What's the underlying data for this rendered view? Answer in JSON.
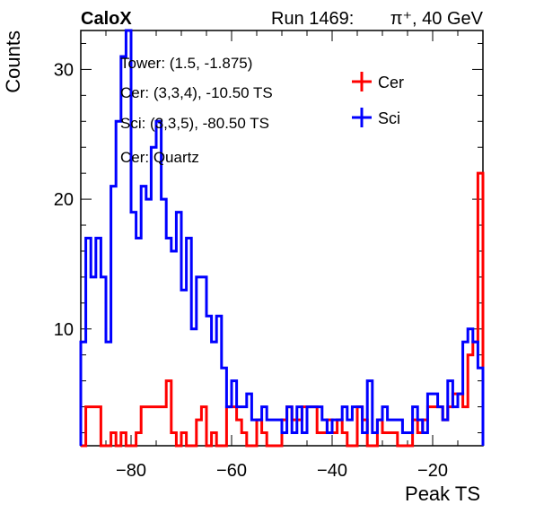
{
  "header": {
    "experiment": "CaloX",
    "run_prefix": "Run 1469:",
    "particle": "π⁺, 40 GeV"
  },
  "annotations": [
    "Tower: (1.5, -1.875)",
    "Cer: (3,3,4), -10.50 TS",
    "Sci: (3,3,5), -80.50 TS",
    "Cer: Quartz"
  ],
  "colors": {
    "Cer": "#ff0000",
    "Sci": "#0000ff"
  },
  "chart_data": {
    "type": "line",
    "style": "step-histogram",
    "xlabel": "Peak TS",
    "ylabel": "Counts",
    "xlim": [
      -90,
      -10
    ],
    "ylim": [
      1,
      33
    ],
    "x_ticks": [
      -80,
      -60,
      -40,
      -20
    ],
    "y_ticks": [
      10,
      20,
      30
    ],
    "legend": {
      "placement": "top-right",
      "entries": [
        "Cer",
        "Sci"
      ]
    },
    "bin_width": 1,
    "bin_low_edges": [
      -90,
      -89,
      -88,
      -87,
      -86,
      -85,
      -84,
      -83,
      -82,
      -81,
      -80,
      -79,
      -78,
      -77,
      -76,
      -75,
      -74,
      -73,
      -72,
      -71,
      -70,
      -69,
      -68,
      -67,
      -66,
      -65,
      -64,
      -63,
      -62,
      -61,
      -60,
      -59,
      -58,
      -57,
      -56,
      -55,
      -54,
      -53,
      -52,
      -51,
      -50,
      -49,
      -48,
      -47,
      -46,
      -45,
      -44,
      -43,
      -42,
      -41,
      -40,
      -39,
      -38,
      -37,
      -36,
      -35,
      -34,
      -33,
      -32,
      -31,
      -30,
      -29,
      -28,
      -27,
      -26,
      -25,
      -24,
      -23,
      -22,
      -21,
      -20,
      -19,
      -18,
      -17,
      -16,
      -15,
      -14,
      -13,
      -12,
      -11
    ],
    "series": [
      {
        "name": "Cer",
        "values": [
          1,
          4,
          4,
          4,
          1,
          1,
          2,
          1,
          2,
          1,
          1,
          2,
          4,
          4,
          4,
          4,
          4,
          6,
          2,
          1,
          2,
          1,
          1,
          3,
          4,
          1,
          2,
          1,
          1,
          4,
          4,
          3,
          2,
          1,
          1,
          3,
          2,
          1,
          1,
          1,
          3,
          4,
          3,
          3,
          4,
          4,
          4,
          2,
          2,
          3,
          2,
          3,
          2,
          1,
          1,
          4,
          3,
          1,
          1,
          3,
          2,
          2,
          2,
          1,
          1,
          1,
          3,
          2,
          3,
          4,
          4,
          4,
          3,
          4,
          5,
          5,
          4,
          8,
          9,
          22
        ]
      },
      {
        "name": "Sci",
        "values": [
          9,
          17,
          14,
          17,
          14,
          9,
          21,
          26,
          31,
          33,
          19,
          17,
          21,
          20,
          24,
          26,
          20,
          17,
          16,
          19,
          13,
          17,
          10,
          14,
          14,
          11,
          9,
          11,
          7,
          4,
          6,
          4,
          4,
          5,
          3,
          3,
          4,
          3,
          3,
          3,
          2,
          4,
          2,
          4,
          2,
          4,
          4,
          4,
          3,
          2,
          3,
          3,
          4,
          3,
          4,
          4,
          2,
          6,
          2,
          3,
          4,
          3,
          3,
          3,
          2,
          2,
          4,
          3,
          2,
          5,
          5,
          4,
          3,
          6,
          4,
          5,
          9,
          10,
          9,
          7
        ]
      }
    ]
  }
}
